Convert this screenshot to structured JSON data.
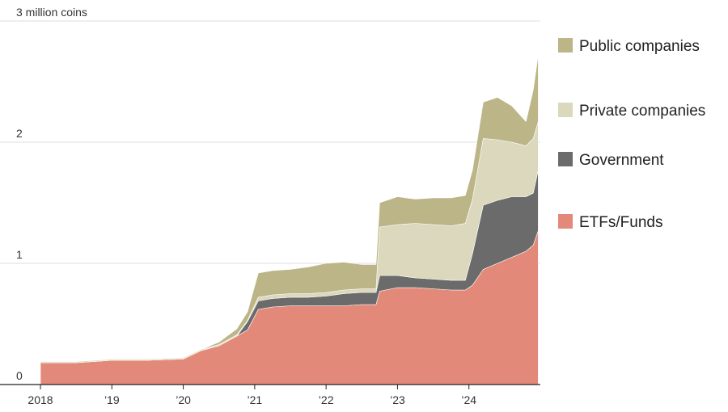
{
  "chart_data": {
    "type": "area",
    "stacked": true,
    "title": "",
    "ylabel": "3 million coins",
    "ylim": [
      0,
      3
    ],
    "yticks": [
      {
        "value": 0,
        "label": "0"
      },
      {
        "value": 1,
        "label": "1"
      },
      {
        "value": 2,
        "label": "2"
      },
      {
        "value": 3,
        "label": "3 million coins"
      }
    ],
    "xlim": [
      2018.0,
      2025.0
    ],
    "xticks": [
      {
        "value": 2018,
        "label": "2018"
      },
      {
        "value": 2019,
        "label": "’19"
      },
      {
        "value": 2020,
        "label": "’20"
      },
      {
        "value": 2021,
        "label": "’21"
      },
      {
        "value": 2022,
        "label": "’22"
      },
      {
        "value": 2023,
        "label": "’23"
      },
      {
        "value": 2024,
        "label": "’24"
      }
    ],
    "x": [
      2018.0,
      2018.5,
      2019.0,
      2019.5,
      2020.0,
      2020.25,
      2020.5,
      2020.75,
      2020.9,
      2021.05,
      2021.25,
      2021.5,
      2021.75,
      2022.0,
      2022.25,
      2022.5,
      2022.7,
      2022.75,
      2023.0,
      2023.25,
      2023.5,
      2023.75,
      2023.95,
      2024.05,
      2024.2,
      2024.4,
      2024.6,
      2024.8,
      2024.9,
      2024.97
    ],
    "series": [
      {
        "name": "ETFs/Funds",
        "color": "#e3897a",
        "values": [
          0.18,
          0.18,
          0.2,
          0.2,
          0.21,
          0.28,
          0.32,
          0.4,
          0.45,
          0.62,
          0.64,
          0.65,
          0.65,
          0.65,
          0.65,
          0.66,
          0.66,
          0.77,
          0.8,
          0.8,
          0.79,
          0.78,
          0.78,
          0.82,
          0.95,
          1.0,
          1.05,
          1.1,
          1.15,
          1.27
        ]
      },
      {
        "name": "Government",
        "color": "#6b6b6b",
        "values": [
          0,
          0,
          0,
          0,
          0,
          0,
          0,
          0,
          0.07,
          0.07,
          0.07,
          0.07,
          0.07,
          0.08,
          0.1,
          0.1,
          0.1,
          0.13,
          0.1,
          0.08,
          0.08,
          0.08,
          0.08,
          0.26,
          0.53,
          0.52,
          0.5,
          0.45,
          0.43,
          0.5
        ]
      },
      {
        "name": "Private companies",
        "color": "#dcd8bd",
        "values": [
          0.01,
          0.01,
          0.01,
          0.01,
          0.01,
          0.01,
          0.01,
          0.01,
          0.01,
          0.03,
          0.03,
          0.03,
          0.03,
          0.03,
          0.03,
          0.03,
          0.03,
          0.4,
          0.42,
          0.45,
          0.45,
          0.45,
          0.47,
          0.45,
          0.55,
          0.5,
          0.45,
          0.42,
          0.45,
          0.4
        ]
      },
      {
        "name": "Public companies",
        "color": "#bcb587",
        "values": [
          0,
          0,
          0,
          0,
          0,
          0,
          0.02,
          0.05,
          0.07,
          0.2,
          0.2,
          0.2,
          0.22,
          0.24,
          0.23,
          0.2,
          0.2,
          0.2,
          0.23,
          0.2,
          0.22,
          0.23,
          0.23,
          0.24,
          0.3,
          0.35,
          0.3,
          0.2,
          0.4,
          0.55
        ]
      }
    ],
    "legend_position": "right",
    "legend_order": [
      "Public companies",
      "Private companies",
      "Government",
      "ETFs/Funds"
    ],
    "grid": true
  }
}
